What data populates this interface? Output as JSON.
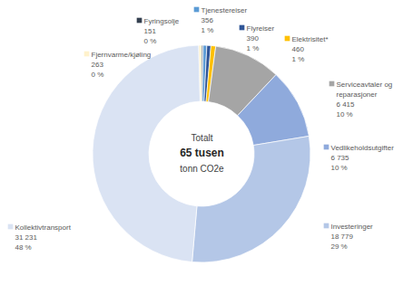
{
  "chart_data": {
    "type": "pie",
    "categories": [
      "Fyringsolje",
      "Tjenestereiser",
      "Flyreiser",
      "Elektrisitet*",
      "Serviceavtaler og reparasjoner",
      "Vedlikeholdsutgifter",
      "Investeringer",
      "Kollektivtransport",
      "Fjernvarme/kjøling"
    ],
    "values": [
      151,
      356,
      390,
      460,
      6415,
      6735,
      18779,
      31231,
      263
    ],
    "value_labels": [
      "151",
      "356",
      "390",
      "460",
      "6 415",
      "6 735",
      "18 779",
      "31 231",
      "263"
    ],
    "percentage_labels": [
      "0 %",
      "1 %",
      "1 %",
      "1 %",
      "10 %",
      "10 %",
      "29 %",
      "48 %",
      "0 %"
    ],
    "colors": [
      "#333f50",
      "#5b9bd5",
      "#2f5597",
      "#ffc000",
      "#a5a5a5",
      "#8faadc",
      "#b4c7e7",
      "#dae3f3",
      "#fff2cc"
    ],
    "data_labels": true,
    "center_text": [
      "Totalt",
      "65 tusen",
      "tonn CO2e"
    ]
  }
}
